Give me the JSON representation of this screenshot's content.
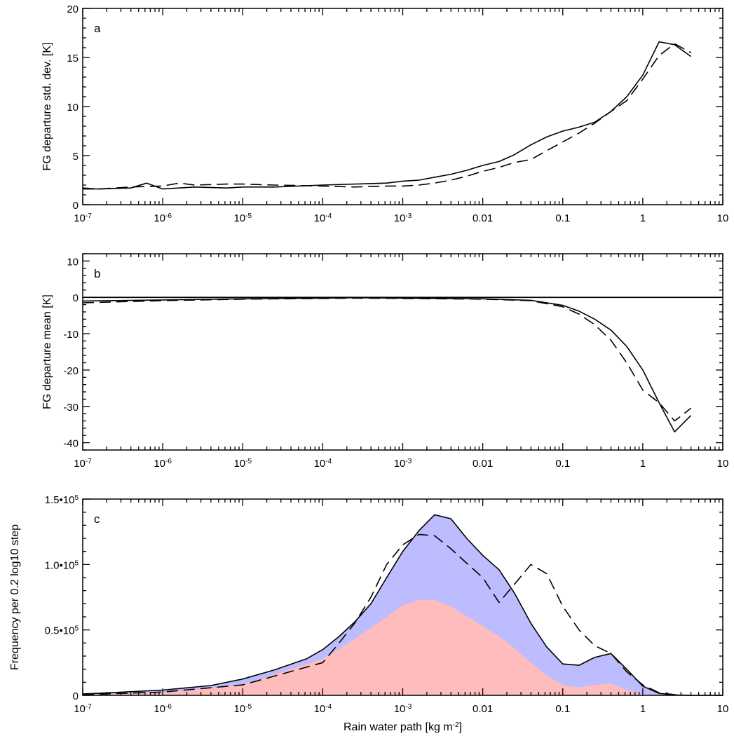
{
  "chart_data": [
    {
      "panel": "a",
      "type": "line",
      "x_scale": "log",
      "xlim": [
        1e-07,
        10
      ],
      "ylim": [
        0,
        20
      ],
      "ylabel": "FG departure std. dev. [K]",
      "x_ticks": [
        1e-07,
        1e-06,
        1e-05,
        0.0001,
        0.001,
        0.01,
        0.1,
        1,
        10
      ],
      "y_ticks": [
        0,
        5,
        10,
        15,
        20
      ],
      "series": [
        {
          "style": "solid",
          "x": [
            1e-07,
            1.6e-07,
            4e-07,
            6.3e-07,
            1e-06,
            1.6e-06,
            2.5e-06,
            6.3e-06,
            1e-05,
            2.5e-05,
            0.0001,
            0.00025,
            0.00063,
            0.001,
            0.0016,
            0.0025,
            0.004,
            0.0063,
            0.01,
            0.016,
            0.025,
            0.04,
            0.063,
            0.1,
            0.16,
            0.25,
            0.4,
            0.63,
            1,
            1.6,
            2.5,
            4
          ],
          "y": [
            1.6,
            1.6,
            1.7,
            2.2,
            1.6,
            1.7,
            1.8,
            1.7,
            1.8,
            1.8,
            2.0,
            2.1,
            2.2,
            2.4,
            2.5,
            2.8,
            3.1,
            3.5,
            4.0,
            4.4,
            5.1,
            6.1,
            6.9,
            7.5,
            7.9,
            8.4,
            9.5,
            11.0,
            13.2,
            16.6,
            16.3,
            15.1
          ]
        },
        {
          "style": "dashed",
          "x": [
            1e-07,
            1.6e-07,
            4e-07,
            1e-06,
            1.6e-06,
            2.5e-06,
            6.3e-06,
            1e-05,
            2.5e-05,
            0.0001,
            0.00025,
            0.00063,
            0.001,
            0.0016,
            0.0025,
            0.004,
            0.0063,
            0.01,
            0.016,
            0.025,
            0.04,
            0.063,
            0.1,
            0.16,
            0.25,
            0.4,
            0.63,
            1,
            1.6,
            2.5,
            4
          ],
          "y": [
            1.7,
            1.6,
            1.8,
            1.9,
            2.2,
            2.0,
            2.1,
            2.1,
            2.0,
            1.9,
            1.8,
            1.9,
            1.9,
            2.0,
            2.2,
            2.5,
            2.9,
            3.4,
            3.8,
            4.3,
            4.6,
            5.5,
            6.4,
            7.3,
            8.3,
            9.5,
            10.6,
            12.8,
            15.2,
            16.4,
            15.5
          ]
        }
      ]
    },
    {
      "panel": "b",
      "type": "line",
      "x_scale": "log",
      "xlim": [
        1e-07,
        10
      ],
      "ylim": [
        -42,
        12
      ],
      "ylabel": "FG departure mean [K]",
      "x_ticks": [
        1e-07,
        1e-06,
        1e-05,
        0.0001,
        0.001,
        0.01,
        0.1,
        1,
        10
      ],
      "y_ticks": [
        -40,
        -30,
        -20,
        -10,
        0,
        10
      ],
      "zero_line": true,
      "series": [
        {
          "style": "solid",
          "x": [
            1e-07,
            1e-06,
            1e-05,
            0.0001,
            0.00025,
            0.001,
            0.01,
            0.04,
            0.1,
            0.16,
            0.25,
            0.4,
            0.63,
            1,
            1.6,
            2.5,
            4
          ],
          "y": [
            -1.0,
            -0.7,
            -0.4,
            -0.2,
            -0.1,
            -0.2,
            -0.4,
            -0.8,
            -2.2,
            -3.8,
            -6.0,
            -9.0,
            -13.5,
            -20.0,
            -29.0,
            -37.0,
            -32.5
          ]
        },
        {
          "style": "dashed",
          "x": [
            1e-07,
            1e-06,
            1e-05,
            0.0001,
            0.00025,
            0.001,
            0.01,
            0.04,
            0.1,
            0.16,
            0.25,
            0.4,
            0.63,
            1,
            1.6,
            2.5,
            4
          ],
          "y": [
            -1.5,
            -0.9,
            -0.5,
            -0.3,
            -0.2,
            -0.3,
            -0.5,
            -0.9,
            -2.6,
            -4.6,
            -7.5,
            -11.8,
            -18.0,
            -25.5,
            -29.0,
            -34.0,
            -30.5
          ]
        }
      ]
    },
    {
      "panel": "c",
      "type": "area",
      "x_scale": "log",
      "xlim": [
        1e-07,
        10
      ],
      "ylim": [
        0,
        150000
      ],
      "ylabel": "Frequency per 0.2 log10 step",
      "xlabel": "Rain water path [kg m^-2]",
      "x_ticks": [
        1e-07,
        1e-06,
        1e-05,
        0.0001,
        0.001,
        0.01,
        0.1,
        1,
        10
      ],
      "y_ticks": [
        0,
        50000,
        100000,
        150000
      ],
      "colors": {
        "blue_fill": "#bcbcff",
        "pink_fill": "#ffbcbc"
      },
      "series": [
        {
          "style": "solid",
          "fill": "blue_fill",
          "x": [
            1e-07,
            1e-06,
            4e-06,
            1e-05,
            2.5e-05,
            6.3e-05,
            0.0001,
            0.00016,
            0.00025,
            0.0004,
            0.00063,
            0.001,
            0.0016,
            0.0025,
            0.004,
            0.0063,
            0.01,
            0.016,
            0.025,
            0.04,
            0.063,
            0.1,
            0.16,
            0.25,
            0.4,
            0.63,
            1,
            1.6,
            2.5,
            4,
            10
          ],
          "y": [
            1000,
            4000,
            7500,
            12500,
            19500,
            28000,
            35000,
            45000,
            56000,
            70000,
            90000,
            110000,
            126000,
            138000,
            135000,
            120000,
            107000,
            96000,
            78000,
            55000,
            37000,
            24000,
            23000,
            29000,
            32000,
            20000,
            7000,
            1500,
            300,
            0,
            0
          ]
        },
        {
          "style": "fill-only",
          "fill": "pink_fill",
          "x": [
            1e-07,
            1e-06,
            1e-05,
            0.0001,
            0.00025,
            0.00063,
            0.001,
            0.0016,
            0.0025,
            0.004,
            0.01,
            0.016,
            0.025,
            0.04,
            0.063,
            0.1,
            0.16,
            0.25,
            0.4,
            0.63,
            1,
            1.6,
            10
          ],
          "y": [
            500,
            2000,
            8000,
            28000,
            43000,
            60000,
            69000,
            73000,
            73000,
            68000,
            53000,
            45000,
            36000,
            25000,
            15000,
            8000,
            6000,
            8000,
            9000,
            4000,
            1000,
            200,
            0
          ]
        },
        {
          "style": "dashed",
          "x": [
            1e-07,
            1e-06,
            1e-05,
            0.0001,
            0.00016,
            0.00025,
            0.0004,
            0.00063,
            0.001,
            0.0016,
            0.0025,
            0.004,
            0.0063,
            0.01,
            0.016,
            0.025,
            0.04,
            0.063,
            0.1,
            0.16,
            0.25,
            0.4,
            0.63,
            1,
            1.6,
            2.5,
            4
          ],
          "y": [
            500,
            2500,
            8000,
            25000,
            40000,
            55000,
            75000,
            100000,
            115000,
            123000,
            122000,
            112000,
            101000,
            90000,
            71000,
            85000,
            100000,
            93000,
            68000,
            50000,
            38000,
            32000,
            18000,
            8000,
            2000,
            500,
            0
          ]
        }
      ]
    }
  ]
}
